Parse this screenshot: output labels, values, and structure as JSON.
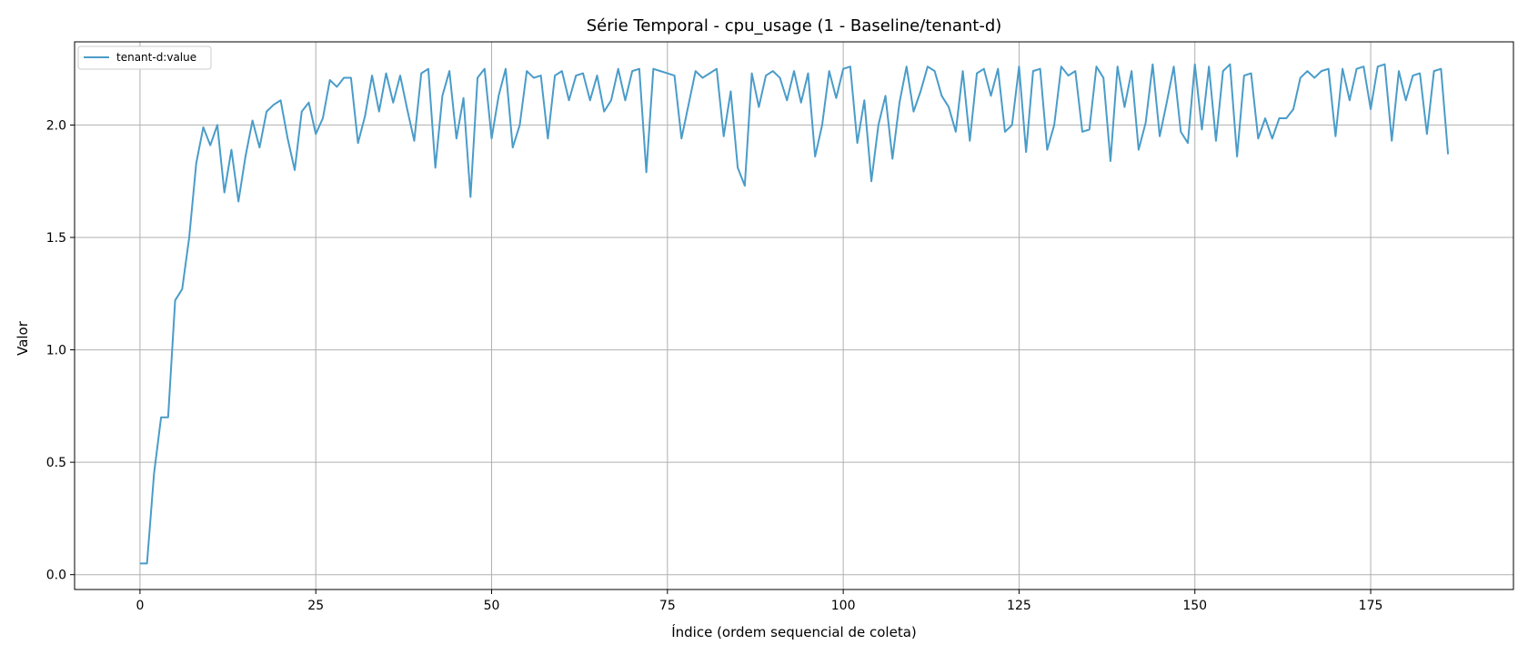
{
  "chart_data": {
    "type": "line",
    "title": "Série Temporal - cpu_usage (1 - Baseline/tenant-d)",
    "xlabel": "Índice (ordem sequencial de coleta)",
    "ylabel": "Valor",
    "xlim": [
      -9.3,
      195.3
    ],
    "ylim": [
      -0.066,
      2.37
    ],
    "xticks": [
      0,
      25,
      50,
      75,
      100,
      125,
      150,
      175
    ],
    "yticks": [
      0.0,
      0.5,
      1.0,
      1.5,
      2.0
    ],
    "xtick_labels": [
      "0",
      "25",
      "50",
      "75",
      "100",
      "125",
      "150",
      "175"
    ],
    "ytick_labels": [
      "0.0",
      "0.5",
      "1.0",
      "1.5",
      "2.0"
    ],
    "grid": true,
    "legend_position": "top-left",
    "colors": {
      "series": "#4a9cc9",
      "grid": "#b0b0b0",
      "axis": "#000000"
    },
    "series": [
      {
        "name": "tenant-d:value",
        "x": [
          0,
          1,
          2,
          3,
          4,
          5,
          6,
          7,
          8,
          9,
          10,
          11,
          12,
          13,
          14,
          15,
          16,
          17,
          18,
          19,
          20,
          21,
          22,
          23,
          24,
          25,
          26,
          27,
          28,
          29,
          30,
          31,
          32,
          33,
          34,
          35,
          36,
          37,
          38,
          39,
          40,
          41,
          42,
          43,
          44,
          45,
          46,
          47,
          48,
          49,
          50,
          51,
          52,
          53,
          54,
          55,
          56,
          57,
          58,
          59,
          60,
          61,
          62,
          63,
          64,
          65,
          66,
          67,
          68,
          69,
          70,
          71,
          72,
          73,
          74,
          75,
          76,
          77,
          78,
          79,
          80,
          81,
          82,
          83,
          84,
          85,
          86,
          87,
          88,
          89,
          90,
          91,
          92,
          93,
          94,
          95,
          96,
          97,
          98,
          99,
          100,
          101,
          102,
          103,
          104,
          105,
          106,
          107,
          108,
          109,
          110,
          111,
          112,
          113,
          114,
          115,
          116,
          117,
          118,
          119,
          120,
          121,
          122,
          123,
          124,
          125,
          126,
          127,
          128,
          129,
          130,
          131,
          132,
          133,
          134,
          135,
          136,
          137,
          138,
          139,
          140,
          141,
          142,
          143,
          144,
          145,
          146,
          147,
          148,
          149,
          150,
          151,
          152,
          153,
          154,
          155,
          156,
          157,
          158,
          159,
          160,
          161,
          162,
          163,
          164,
          165,
          166,
          167,
          168,
          169,
          170,
          171,
          172,
          173,
          174,
          175,
          176,
          177,
          178,
          179,
          180,
          181,
          182,
          183,
          184,
          185,
          186
        ],
        "values": [
          0.05,
          0.05,
          0.45,
          0.7,
          0.7,
          1.22,
          1.27,
          1.5,
          1.83,
          1.99,
          1.91,
          2.0,
          1.7,
          1.89,
          1.66,
          1.86,
          2.02,
          1.9,
          2.06,
          2.09,
          2.11,
          1.94,
          1.8,
          2.06,
          2.1,
          1.96,
          2.03,
          2.2,
          2.17,
          2.21,
          2.21,
          1.92,
          2.04,
          2.22,
          2.06,
          2.23,
          2.1,
          2.22,
          2.07,
          1.93,
          2.23,
          2.25,
          1.81,
          2.13,
          2.24,
          1.94,
          2.12,
          1.68,
          2.21,
          2.25,
          1.94,
          2.13,
          2.25,
          1.9,
          2.0,
          2.24,
          2.21,
          2.22,
          1.94,
          2.22,
          2.24,
          2.11,
          2.22,
          2.23,
          2.11,
          2.22,
          2.06,
          2.11,
          2.25,
          2.11,
          2.24,
          2.25,
          1.79,
          2.25,
          2.24,
          2.23,
          2.22,
          1.94,
          2.09,
          2.24,
          2.21,
          2.23,
          2.25,
          1.95,
          2.15,
          1.81,
          1.73,
          2.23,
          2.08,
          2.22,
          2.24,
          2.21,
          2.11,
          2.24,
          2.1,
          2.23,
          1.86,
          2.0,
          2.24,
          2.12,
          2.25,
          2.26,
          1.92,
          2.11,
          1.75,
          2.0,
          2.13,
          1.85,
          2.1,
          2.26,
          2.06,
          2.15,
          2.26,
          2.24,
          2.13,
          2.08,
          1.97,
          2.24,
          1.93,
          2.23,
          2.25,
          2.13,
          2.25,
          1.97,
          2.0,
          2.26,
          1.88,
          2.24,
          2.25,
          1.89,
          2.0,
          2.26,
          2.22,
          2.24,
          1.97,
          1.98,
          2.26,
          2.21,
          1.84,
          2.26,
          2.08,
          2.24,
          1.89,
          2.01,
          2.27,
          1.95,
          2.1,
          2.26,
          1.97,
          1.92,
          2.27,
          1.98,
          2.26,
          1.93,
          2.24,
          2.27,
          1.86,
          2.22,
          2.23,
          1.94,
          2.03,
          1.94,
          2.03,
          2.03,
          2.07,
          2.21,
          2.24,
          2.21,
          2.24,
          2.25,
          1.95,
          2.25,
          2.11,
          2.25,
          2.26,
          2.07,
          2.26,
          2.27,
          1.93,
          2.24,
          2.11,
          2.22,
          2.23,
          1.96,
          2.24,
          2.25,
          1.87
        ]
      }
    ]
  }
}
